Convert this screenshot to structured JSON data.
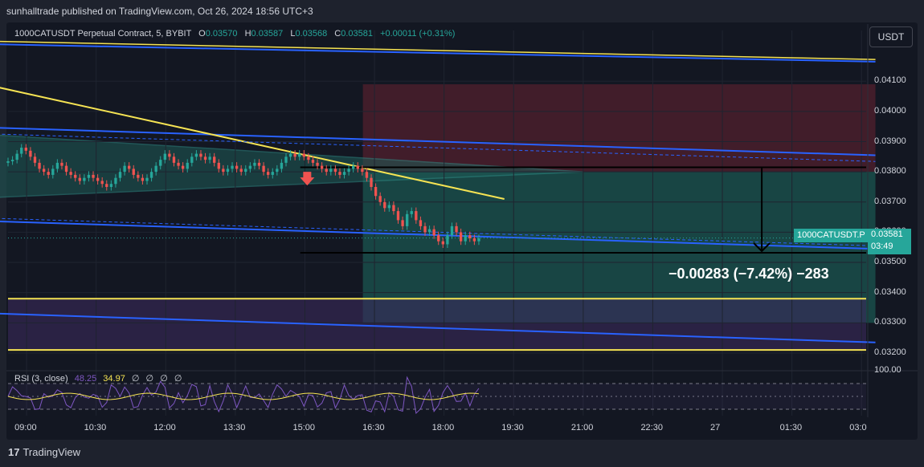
{
  "header": {
    "published_text": "sunhalltrade published on TradingView.com, Oct 26, 2024 18:56 UTC+3"
  },
  "legend": {
    "symbol_text": "1000CATUSDT Perpetual Contract, 5, BYBIT",
    "open_key": "O",
    "open_value": "0.03570",
    "high_key": "H",
    "high_value": "0.03587",
    "low_key": "L",
    "low_value": "0.03568",
    "close_key": "C",
    "close_value": "0.03581",
    "change_value": "+0.00011 (+0.31%)"
  },
  "currency_button": "USDT",
  "price_tag": {
    "symbol": "1000CATUSDT.P",
    "price": "0.03581",
    "countdown": "03:49"
  },
  "measure_label": "−0.00283 (−7.42%) −283",
  "rsi_legend": {
    "name": "RSI (3, close)",
    "value1": "48.25",
    "value2": "34.97",
    "z1": "∅",
    "z2": "∅",
    "z3": "∅",
    "z4": "∅"
  },
  "rsi_axis_label": "100.00",
  "footer": {
    "brand": "TradingView",
    "logo_glyph": "17"
  },
  "colors": {
    "background": "#131722",
    "bull": "#26a69a",
    "bear": "#ef5350",
    "channel_blue": "#2962ff",
    "trend_yellow": "#f5e353",
    "target_zone": "#1a4d4a",
    "stop_zone": "#4a1e2b",
    "rsi_line": "#7e57c2"
  },
  "chart_data": {
    "type": "candlestick",
    "symbol": "1000CATUSDT Perpetual Contract",
    "timeframe": "5",
    "exchange": "BYBIT",
    "y_ticks": [
      "0.04100",
      "0.04000",
      "0.03900",
      "0.03800",
      "0.03700",
      "0.03600",
      "0.03500",
      "0.03400",
      "0.03300",
      "0.03200"
    ],
    "y_tick_values": [
      0.041,
      0.04,
      0.039,
      0.038,
      0.037,
      0.036,
      0.035,
      0.034,
      0.033,
      0.032
    ],
    "x_ticks": [
      "09:00",
      "10:30",
      "12:00",
      "13:30",
      "15:00",
      "16:30",
      "18:00",
      "19:30",
      "21:00",
      "22:30",
      "27",
      "01:30",
      "03:0"
    ],
    "x_tick_hours": [
      9,
      10.5,
      12,
      13.5,
      15,
      16.5,
      18,
      19.5,
      21,
      22.5,
      24,
      25.5,
      27
    ],
    "last_price": 0.03581,
    "candles_close": [
      0.03835,
      0.0384,
      0.0386,
      0.0388,
      0.0387,
      0.0385,
      0.0383,
      0.0381,
      0.038,
      0.0379,
      0.0381,
      0.0383,
      0.0382,
      0.038,
      0.0379,
      0.0378,
      0.0377,
      0.0378,
      0.0379,
      0.0378,
      0.0377,
      0.0376,
      0.0375,
      0.0376,
      0.0378,
      0.038,
      0.0382,
      0.0381,
      0.0379,
      0.0378,
      0.0377,
      0.0378,
      0.038,
      0.0382,
      0.0384,
      0.0386,
      0.0385,
      0.0383,
      0.0382,
      0.0381,
      0.0383,
      0.0385,
      0.0386,
      0.0385,
      0.0384,
      0.0385,
      0.0383,
      0.0381,
      0.038,
      0.0381,
      0.0382,
      0.0381,
      0.038,
      0.0381,
      0.0382,
      0.0383,
      0.0382,
      0.038,
      0.0379,
      0.038,
      0.0381,
      0.0383,
      0.0385,
      0.0386,
      0.0385,
      0.0386,
      0.0385,
      0.0384,
      0.0383,
      0.0382,
      0.0381,
      0.038,
      0.0381,
      0.038,
      0.0379,
      0.038,
      0.0381,
      0.0382,
      0.0381,
      0.038,
      0.0378,
      0.0375,
      0.0372,
      0.037,
      0.0368,
      0.0369,
      0.0367,
      0.0364,
      0.0362,
      0.0366,
      0.0367,
      0.0364,
      0.0362,
      0.036,
      0.0361,
      0.0359,
      0.0357,
      0.0356,
      0.0359,
      0.0362,
      0.036,
      0.0357,
      0.0359,
      0.0358,
      0.0357,
      0.0358
    ],
    "channel_upper": {
      "start": [
        7.5,
        0.0395
      ],
      "end": [
        27.3,
        0.03855
      ]
    },
    "channel_lower": {
      "start": [
        7.5,
        0.0364
      ],
      "end": [
        27.3,
        0.03545
      ]
    },
    "channel_top_outer": {
      "start": [
        7.5,
        0.04225
      ],
      "end": [
        27.3,
        0.04165
      ]
    },
    "channel_bottom_outer": {
      "start": [
        7.5,
        0.03335
      ],
      "end": [
        27.3,
        0.03235
      ]
    },
    "trendline_yellow_1": {
      "start": [
        7.5,
        0.0411
      ],
      "end": [
        19.3,
        0.0371
      ]
    },
    "trendline_yellow_top": {
      "start": [
        7.5,
        0.04235
      ],
      "end": [
        27.3,
        0.04172
      ]
    },
    "triangle": {
      "upper_start": [
        7.5,
        0.0393
      ],
      "lower_start": [
        7.5,
        0.0371
      ],
      "apex": [
        21.0,
        0.038
      ]
    },
    "horizontal_levels": [
      {
        "value": 0.0338,
        "color": "yellow"
      },
      {
        "value": 0.0321,
        "color": "yellow"
      },
      {
        "value": 0.03815,
        "color": "black"
      },
      {
        "value": 0.03532,
        "color": "black"
      }
    ],
    "short_position": {
      "start_hour": 16.25,
      "end_hour": 27.3,
      "entry": 0.038,
      "stop": 0.0409,
      "target": 0.033
    },
    "measure": {
      "from": 0.03815,
      "to": 0.03532,
      "label": "−0.00283 (−7.42%) −283"
    },
    "rsi": {
      "period": 3,
      "source": "close",
      "value": 48.25,
      "ma_value": 34.97,
      "levels": [
        70,
        50,
        30
      ]
    }
  }
}
